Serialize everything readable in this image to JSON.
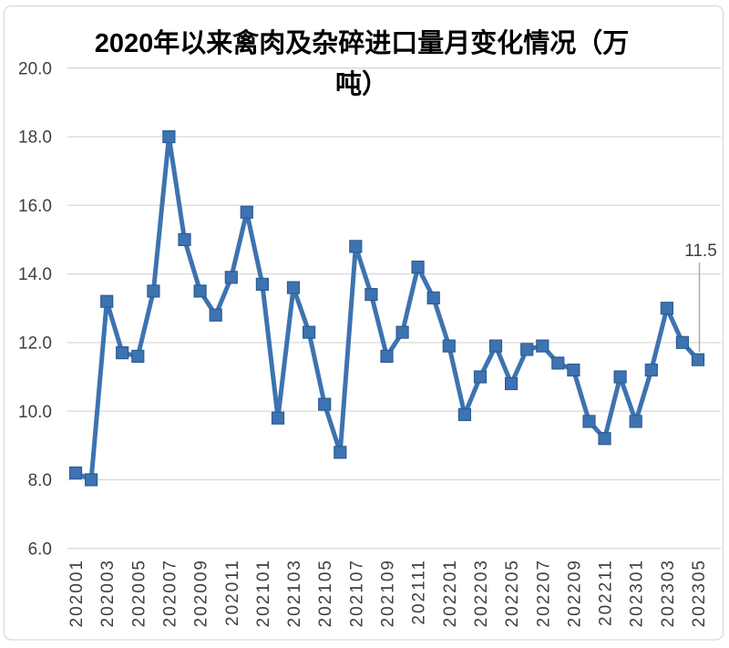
{
  "chart_data": {
    "type": "line",
    "title": "2020年以来禽肉及杂碎进口量月变化情况（万吨）",
    "title_line1": "2020年以来禽肉及杂碎进口量月变化情况（万",
    "title_line2": "吨）",
    "xlabel": "",
    "ylabel": "",
    "x": [
      "202001",
      "202002",
      "202003",
      "202004",
      "202005",
      "202006",
      "202007",
      "202008",
      "202009",
      "202010",
      "202011",
      "202012",
      "202101",
      "202102",
      "202103",
      "202104",
      "202105",
      "202106",
      "202107",
      "202108",
      "202109",
      "202110",
      "202111",
      "202112",
      "202201",
      "202202",
      "202203",
      "202204",
      "202205",
      "202206",
      "202207",
      "202208",
      "202209",
      "202210",
      "202211",
      "202212",
      "202301",
      "202302",
      "202303",
      "202304",
      "202305"
    ],
    "values": [
      8.2,
      8.0,
      13.2,
      11.7,
      11.6,
      13.5,
      18.0,
      15.0,
      13.5,
      12.8,
      13.9,
      15.8,
      13.7,
      9.8,
      13.6,
      12.3,
      10.2,
      8.8,
      14.8,
      13.4,
      11.6,
      12.3,
      14.2,
      13.3,
      11.9,
      9.9,
      11.0,
      11.9,
      10.8,
      11.8,
      11.9,
      11.4,
      11.2,
      9.7,
      9.2,
      11.0,
      9.7,
      11.2,
      13.0,
      12.0,
      11.5
    ],
    "x_tick_labels": [
      "202001",
      "202003",
      "202005",
      "202007",
      "202009",
      "202011",
      "202101",
      "202103",
      "202105",
      "202107",
      "202109",
      "202111",
      "202201",
      "202203",
      "202205",
      "202207",
      "202209",
      "202211",
      "202301",
      "202303",
      "202305"
    ],
    "y_ticks": [
      6,
      8,
      10,
      12,
      14,
      16,
      18,
      20
    ],
    "y_tick_labels": [
      "6.0",
      "8.0",
      "10.0",
      "12.0",
      "14.0",
      "16.0",
      "18.0",
      "20.0"
    ],
    "ylim": [
      6,
      20
    ],
    "grid": true,
    "legend_position": "none",
    "marker": "square",
    "annotation": {
      "label": "11.5",
      "x": "202305",
      "value": 11.5
    },
    "colors": {
      "line": "#3d73b0",
      "marker_fill": "#3d73b0",
      "marker_stroke": "#2c5d92",
      "grid": "#d9d9d9",
      "axis_text": "#404040",
      "title_text": "#000000",
      "leader_line": "#a6a6a6",
      "border": "#d9d9d9",
      "background": "#ffffff"
    }
  }
}
